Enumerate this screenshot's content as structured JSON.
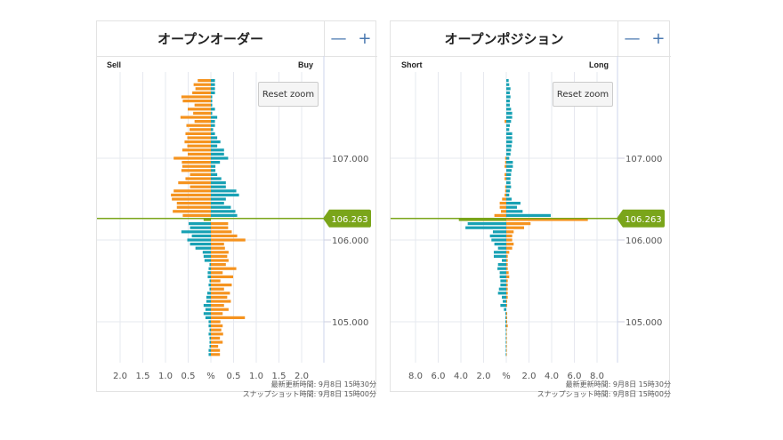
{
  "colors": {
    "orange": "#f5931f",
    "teal": "#18a1b4",
    "green": "#7aa51a",
    "grid": "#e6e8ef"
  },
  "panels": [
    {
      "title": "オープンオーダー",
      "zoom_out": "—",
      "zoom_in": "+",
      "left_label": "Sell",
      "right_label": "Buy",
      "reset_zoom": "Reset zoom",
      "footer_updated": "最新更新時間: 9月8日 15時30分",
      "footer_snapshot": "スナップショット時間: 9月8日 15時00分",
      "current_price": "106.263"
    },
    {
      "title": "オープンポジション",
      "zoom_out": "—",
      "zoom_in": "+",
      "left_label": "Short",
      "right_label": "Long",
      "reset_zoom": "Reset zoom",
      "footer_updated": "最新更新時間: 9月8日 15時30分",
      "footer_snapshot": "スナップショット時間: 9月8日 15時00分",
      "current_price": "106.263"
    }
  ],
  "chart_data": [
    {
      "type": "bar",
      "orientation": "horizontal-butterfly",
      "title": "オープンオーダー",
      "xlabel": "%",
      "x_ticks": [
        "2.0",
        "1.5",
        "1.0",
        "0.5",
        "%",
        "0.5",
        "1.0",
        "1.5",
        "2.0"
      ],
      "xlim": [
        -2.5,
        2.5
      ],
      "y_ticks": [
        "107.000",
        "106.000",
        "105.000"
      ],
      "y_tick_values": [
        107.0,
        106.0,
        105.0
      ],
      "current_price": 106.263,
      "price_start": 107.95,
      "price_step": -0.05,
      "current_row": 34,
      "left": [
        0.29,
        0.38,
        0.34,
        0.41,
        0.65,
        0.62,
        0.36,
        0.51,
        0.39,
        0.67,
        0.36,
        0.54,
        0.47,
        0.56,
        0.52,
        0.58,
        0.52,
        0.63,
        0.51,
        0.82,
        0.64,
        0.63,
        0.65,
        0.46,
        0.56,
        0.72,
        0.46,
        0.82,
        0.88,
        0.86,
        0.75,
        0.75,
        0.84,
        0.62,
        0.16,
        0.49,
        0.46,
        0.65,
        0.42,
        0.52,
        0.46,
        0.34,
        0.18,
        0.16,
        0.14,
        0.03,
        0.05,
        0.07,
        0.07,
        0.03,
        0.05,
        0.03,
        0.08,
        0.1,
        0.1,
        0.16,
        0.12,
        0.16,
        0.12,
        0.05,
        0.05,
        0.03,
        0.05,
        0.03,
        0.03,
        0.03,
        0.05,
        0.05
      ],
      "right": [
        0.09,
        0.09,
        0.09,
        0.09,
        0.03,
        0.03,
        0.03,
        0.09,
        0.03,
        0.14,
        0.09,
        0.09,
        0.05,
        0.09,
        0.14,
        0.21,
        0.14,
        0.29,
        0.29,
        0.38,
        0.2,
        0.1,
        0.1,
        0.14,
        0.23,
        0.33,
        0.33,
        0.56,
        0.62,
        0.33,
        0.29,
        0.44,
        0.54,
        0.58,
        0,
        0.38,
        0.38,
        0.46,
        0.58,
        0.76,
        0.29,
        0.31,
        0.39,
        0.36,
        0.39,
        0.33,
        0.56,
        0.26,
        0.49,
        0.21,
        0.46,
        0.29,
        0.42,
        0.36,
        0.44,
        0.29,
        0.39,
        0.26,
        0.75,
        0.21,
        0.26,
        0.23,
        0.27,
        0.2,
        0.26,
        0.16,
        0.2,
        0.2
      ]
    },
    {
      "type": "bar",
      "orientation": "horizontal-butterfly",
      "title": "オープンポジション",
      "xlabel": "%",
      "x_ticks": [
        "8.0",
        "6.0",
        "4.0",
        "2.0",
        "%",
        "2.0",
        "4.0",
        "6.0",
        "8.0"
      ],
      "xlim": [
        -10,
        10
      ],
      "y_ticks": [
        "107.000",
        "106.000",
        "105.000"
      ],
      "y_tick_values": [
        107.0,
        106.0,
        105.0
      ],
      "current_price": 106.263,
      "price_start": 107.95,
      "price_step": -0.05,
      "current_row": 34,
      "left": [
        0,
        0,
        0,
        0,
        0,
        0,
        0,
        0,
        0,
        0,
        0.15,
        0,
        0,
        0,
        0,
        0,
        0,
        0,
        0,
        0.1,
        0.1,
        0.15,
        0,
        0.15,
        0.15,
        0,
        0.1,
        0.1,
        0.15,
        0.37,
        0.58,
        0.58,
        0.47,
        1.05,
        4.18,
        3.4,
        3.6,
        1.18,
        1.44,
        1.31,
        1.05,
        0.73,
        1.1,
        1.1,
        0.39,
        0.73,
        0.78,
        0.58,
        0.58,
        0.52,
        0.52,
        0.65,
        0.73,
        0.39,
        0.31,
        0.52,
        0.21,
        0.08,
        0.08,
        0.08,
        0.08,
        0.05,
        0.05,
        0.05,
        0.05,
        0.05,
        0.05,
        0.05
      ],
      "right": [
        0.21,
        0.26,
        0.37,
        0.31,
        0.37,
        0.31,
        0.31,
        0.42,
        0.52,
        0.52,
        0.42,
        0.31,
        0.26,
        0.52,
        0.52,
        0.52,
        0.47,
        0.42,
        0.37,
        0.26,
        0.58,
        0.58,
        0.47,
        0.42,
        0.37,
        0.37,
        0.42,
        0.31,
        0.26,
        0.47,
        1.25,
        0.94,
        1.44,
        3.92,
        7.19,
        2.14,
        1.57,
        0.65,
        0.52,
        0.52,
        0.65,
        0.52,
        0.26,
        0.13,
        0.13,
        0.13,
        0.13,
        0.21,
        0.26,
        0.13,
        0.13,
        0.13,
        0.13,
        0.13,
        0.08,
        0.08,
        0,
        0.08,
        0.08,
        0.08,
        0.13,
        0.05,
        0.05,
        0.05,
        0.05,
        0.05,
        0.05,
        0.05
      ]
    }
  ]
}
